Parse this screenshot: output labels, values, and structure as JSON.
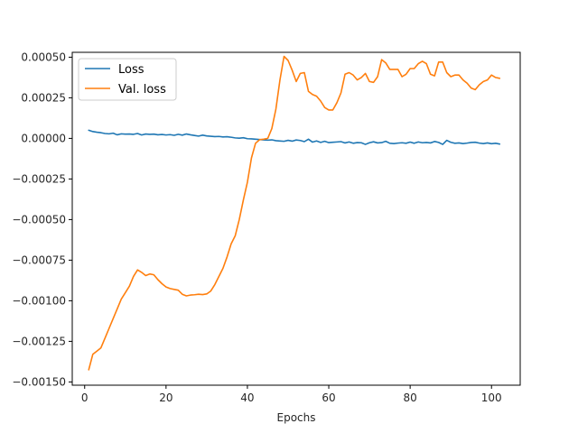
{
  "chart_data": {
    "type": "line",
    "title": "",
    "xlabel": "Epochs",
    "ylabel": "",
    "xlim": [
      -3.05,
      107.05
    ],
    "ylim": [
      -0.00152,
      0.00053
    ],
    "xticks": [
      0,
      20,
      40,
      60,
      80,
      100
    ],
    "xtick_labels": [
      "0",
      "20",
      "40",
      "60",
      "80",
      "100"
    ],
    "yticks": [
      -0.0015,
      -0.00125,
      -0.001,
      -0.00075,
      -0.0005,
      -0.00025,
      0,
      0.00025,
      0.0005
    ],
    "ytick_labels": [
      "−0.00150",
      "−0.00125",
      "−0.00100",
      "−0.00075",
      "−0.00050",
      "−0.00025",
      "0.00000",
      "0.00025",
      "0.00050"
    ],
    "grid": false,
    "legend_position": "upper-left",
    "x": [
      1,
      2,
      3,
      4,
      5,
      6,
      7,
      8,
      9,
      10,
      11,
      12,
      13,
      14,
      15,
      16,
      17,
      18,
      19,
      20,
      21,
      22,
      23,
      24,
      25,
      26,
      27,
      28,
      29,
      30,
      31,
      32,
      33,
      34,
      35,
      36,
      37,
      38,
      39,
      40,
      41,
      42,
      43,
      44,
      45,
      46,
      47,
      48,
      49,
      50,
      51,
      52,
      53,
      54,
      55,
      56,
      57,
      58,
      59,
      60,
      61,
      62,
      63,
      64,
      65,
      66,
      67,
      68,
      69,
      70,
      71,
      72,
      73,
      74,
      75,
      76,
      77,
      78,
      79,
      80,
      81,
      82,
      83,
      84,
      85,
      86,
      87,
      88,
      89,
      90,
      91,
      92,
      93,
      94,
      95,
      96,
      97,
      98,
      99,
      100,
      101,
      102
    ],
    "series": [
      {
        "name": "Loss",
        "color": "#1f77b4",
        "values": [
          5e-05,
          4.2e-05,
          3.8e-05,
          3.5e-05,
          3e-05,
          2.8e-05,
          3.2e-05,
          2.2e-05,
          2.8e-05,
          2.6e-05,
          2.7e-05,
          2.5e-05,
          3e-05,
          2.1e-05,
          2.7e-05,
          2.5e-05,
          2.6e-05,
          2.2e-05,
          2.4e-05,
          2.1e-05,
          2.3e-05,
          1.9e-05,
          2.5e-05,
          2e-05,
          2.7e-05,
          2.2e-05,
          1.8e-05,
          1.4e-05,
          2e-05,
          1.5e-05,
          1.3e-05,
          1.1e-05,
          1.2e-05,
          9e-06,
          1e-05,
          7e-06,
          3e-06,
          1e-06,
          4e-06,
          -2e-06,
          -3e-06,
          -5e-06,
          -7e-06,
          -9e-06,
          -1.1e-05,
          -9e-06,
          -1.4e-05,
          -1.6e-05,
          -1.8e-05,
          -1.2e-05,
          -1.7e-05,
          -1e-05,
          -1.3e-05,
          -2e-05,
          -5e-06,
          -2.3e-05,
          -1.6e-05,
          -2.5e-05,
          -1.8e-05,
          -2.6e-05,
          -2.4e-05,
          -2.2e-05,
          -2e-05,
          -2.8e-05,
          -2.2e-05,
          -3e-05,
          -2.6e-05,
          -2.7e-05,
          -3.7e-05,
          -2.7e-05,
          -2.1e-05,
          -2.8e-05,
          -2.6e-05,
          -1.8e-05,
          -3e-05,
          -3.2e-05,
          -2.9e-05,
          -2.7e-05,
          -3e-05,
          -2.3e-05,
          -3e-05,
          -2.2e-05,
          -2.7e-05,
          -2.5e-05,
          -2.8e-05,
          -1.9e-05,
          -2.5e-05,
          -3.7e-05,
          -1.2e-05,
          -2.4e-05,
          -3e-05,
          -2.8e-05,
          -3.2e-05,
          -2.9e-05,
          -2.5e-05,
          -2.4e-05,
          -2.9e-05,
          -3.2e-05,
          -2.8e-05,
          -3.3e-05,
          -3e-05,
          -3.5e-05
        ]
      },
      {
        "name": "Val. loss",
        "color": "#ff7f0e",
        "values": [
          -0.001425,
          -0.00133,
          -0.00131,
          -0.00129,
          -0.00123,
          -0.00117,
          -0.00111,
          -0.00105,
          -0.00099,
          -0.00095,
          -0.00091,
          -0.00085,
          -0.00081,
          -0.000825,
          -0.000845,
          -0.000835,
          -0.00084,
          -0.00087,
          -0.000895,
          -0.000915,
          -0.000925,
          -0.00093,
          -0.000935,
          -0.00096,
          -0.00097,
          -0.000965,
          -0.000963,
          -0.00096,
          -0.000962,
          -0.000958,
          -0.00094,
          -0.0009,
          -0.00085,
          -0.0008,
          -0.00073,
          -0.00065,
          -0.0006,
          -0.0005,
          -0.00038,
          -0.00027,
          -0.00012,
          -3e-05,
          -8e-06,
          -5e-06,
          0.0,
          6e-05,
          0.00018,
          0.00036,
          0.000505,
          0.00048,
          0.00042,
          0.00035,
          0.0004,
          0.000405,
          0.00029,
          0.00027,
          0.00026,
          0.00023,
          0.00019,
          0.000175,
          0.000175,
          0.00022,
          0.00028,
          0.000395,
          0.000405,
          0.00039,
          0.00036,
          0.000375,
          0.0004,
          0.00035,
          0.000345,
          0.00038,
          0.000485,
          0.000465,
          0.000425,
          0.000425,
          0.000425,
          0.00038,
          0.000395,
          0.00043,
          0.00043,
          0.00046,
          0.000475,
          0.00046,
          0.000395,
          0.000385,
          0.00047,
          0.00047,
          0.000405,
          0.00038,
          0.00039,
          0.00039,
          0.00036,
          0.00034,
          0.00031,
          0.0003,
          0.00033,
          0.00035,
          0.00036,
          0.00039,
          0.000375,
          0.00037
        ]
      }
    ]
  }
}
